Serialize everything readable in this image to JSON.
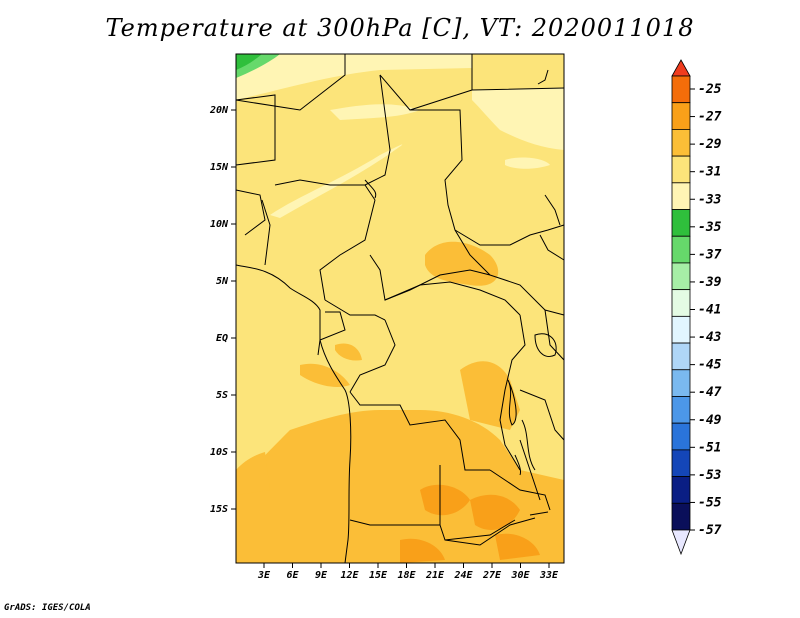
{
  "title": "Temperature at 300hPa [C], VT: 2020011018",
  "credit": "GrADS: IGES/COLA",
  "map": {
    "lat_labels": [
      "20N",
      "15N",
      "10N",
      "5N",
      "EQ",
      "5S",
      "10S",
      "15S"
    ],
    "lon_labels": [
      "3E",
      "6E",
      "9E",
      "12E",
      "15E",
      "18E",
      "21E",
      "24E",
      "27E",
      "30E",
      "33E"
    ],
    "base_color": "#fce47a"
  },
  "colorbar": {
    "labels": [
      "-25",
      "-27",
      "-29",
      "-31",
      "-33",
      "-35",
      "-37",
      "-39",
      "-41",
      "-43",
      "-45",
      "-47",
      "-49",
      "-51",
      "-53",
      "-55",
      "-57"
    ],
    "colors": [
      "#f03c1e",
      "#f46d0a",
      "#f9a019",
      "#fbbe37",
      "#fce47a",
      "#fff5b4",
      "#2fbf3c",
      "#66d96b",
      "#a6eea6",
      "#e4fbe4",
      "#e2f6ff",
      "#afd6f7",
      "#7ab9ef",
      "#4c97e8",
      "#2a74da",
      "#1446b8",
      "#0a1e84",
      "#0a0f5a",
      "#e8e8ff"
    ]
  }
}
